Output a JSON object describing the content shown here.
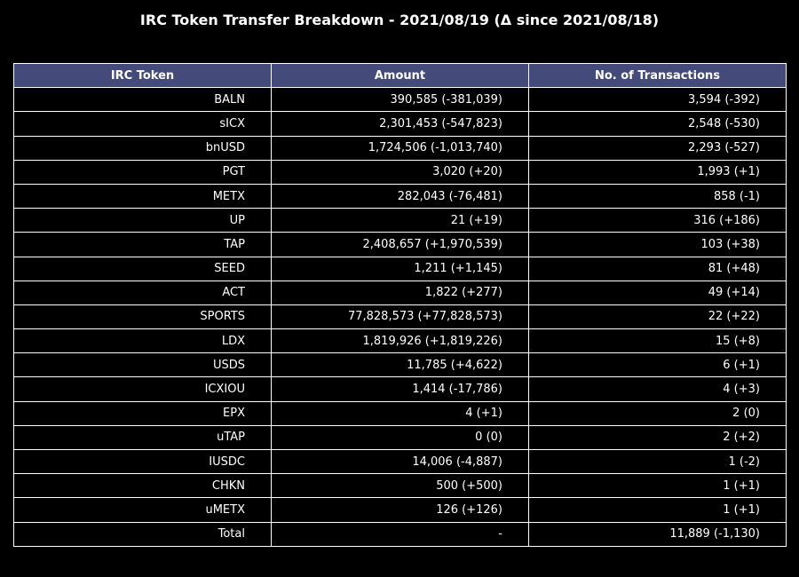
{
  "chart_data": {
    "type": "table",
    "title": "IRC Token Transfer Breakdown - 2021/08/19 (Δ since 2021/08/18)",
    "columns": [
      "IRC Token",
      "Amount",
      "No. of Transactions"
    ],
    "rows": [
      [
        "BALN",
        "390,585 (-381,039)",
        "3,594 (-392)"
      ],
      [
        "sICX",
        "2,301,453 (-547,823)",
        "2,548 (-530)"
      ],
      [
        "bnUSD",
        "1,724,506 (-1,013,740)",
        "2,293 (-527)"
      ],
      [
        "PGT",
        "3,020 (+20)",
        "1,993 (+1)"
      ],
      [
        "METX",
        "282,043 (-76,481)",
        "858 (-1)"
      ],
      [
        "UP",
        "21 (+19)",
        "316 (+186)"
      ],
      [
        "TAP",
        "2,408,657 (+1,970,539)",
        "103 (+38)"
      ],
      [
        "SEED",
        "1,211 (+1,145)",
        "81 (+48)"
      ],
      [
        "ACT",
        "1,822 (+277)",
        "49 (+14)"
      ],
      [
        "SPORTS",
        "77,828,573 (+77,828,573)",
        "22 (+22)"
      ],
      [
        "LDX",
        "1,819,926 (+1,819,226)",
        "15 (+8)"
      ],
      [
        "USDS",
        "11,785 (+4,622)",
        "6 (+1)"
      ],
      [
        "ICXIOU",
        "1,414 (-17,786)",
        "4 (+3)"
      ],
      [
        "EPX",
        "4 (+1)",
        "2 (0)"
      ],
      [
        "uTAP",
        "0 (0)",
        "2 (+2)"
      ],
      [
        "IUSDC",
        "14,006 (-4,887)",
        "1 (-2)"
      ],
      [
        "CHKN",
        "500 (+500)",
        "1 (+1)"
      ],
      [
        "uMETX",
        "126 (+126)",
        "1 (+1)"
      ],
      [
        "Total",
        "-",
        "11,889 (-1,130)"
      ]
    ],
    "header_color": "#444b7a",
    "background_color": "#000000",
    "border_color": "#ffffff",
    "text_color": "#ffffff"
  }
}
